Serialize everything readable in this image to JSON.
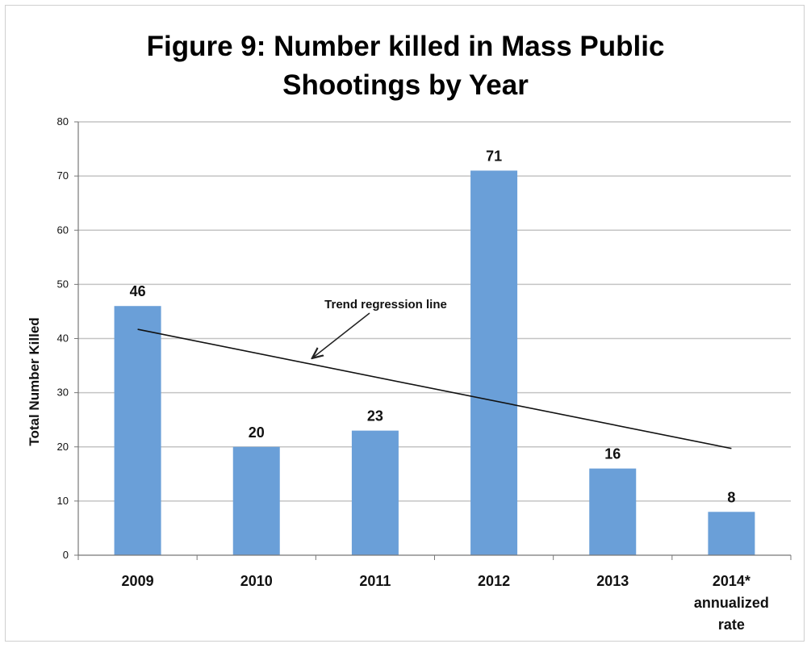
{
  "chart_data": {
    "type": "bar",
    "title_line1": "Figure 9: Number killed in Mass Public",
    "title_line2": "Shootings by Year",
    "ylabel": "Total Number Killed",
    "xlabel": "",
    "ylim": [
      0,
      80
    ],
    "yticks": [
      "0",
      "10",
      "20",
      "30",
      "40",
      "50",
      "60",
      "70",
      "80"
    ],
    "categories": [
      {
        "lines": [
          "2009"
        ]
      },
      {
        "lines": [
          "2010"
        ]
      },
      {
        "lines": [
          "2011"
        ]
      },
      {
        "lines": [
          "2012"
        ]
      },
      {
        "lines": [
          "2013"
        ]
      },
      {
        "lines": [
          "2014*",
          "annualized",
          "rate"
        ]
      }
    ],
    "values": [
      46,
      20,
      23,
      71,
      16,
      8
    ],
    "data_labels": [
      "46",
      "20",
      "23",
      "71",
      "16",
      "8"
    ],
    "grid": true,
    "legend": "none",
    "bar_color": "#6a9fd8",
    "trend_line": {
      "start": 41.7,
      "end": 19.7
    },
    "annotation": "Trend regression line"
  }
}
